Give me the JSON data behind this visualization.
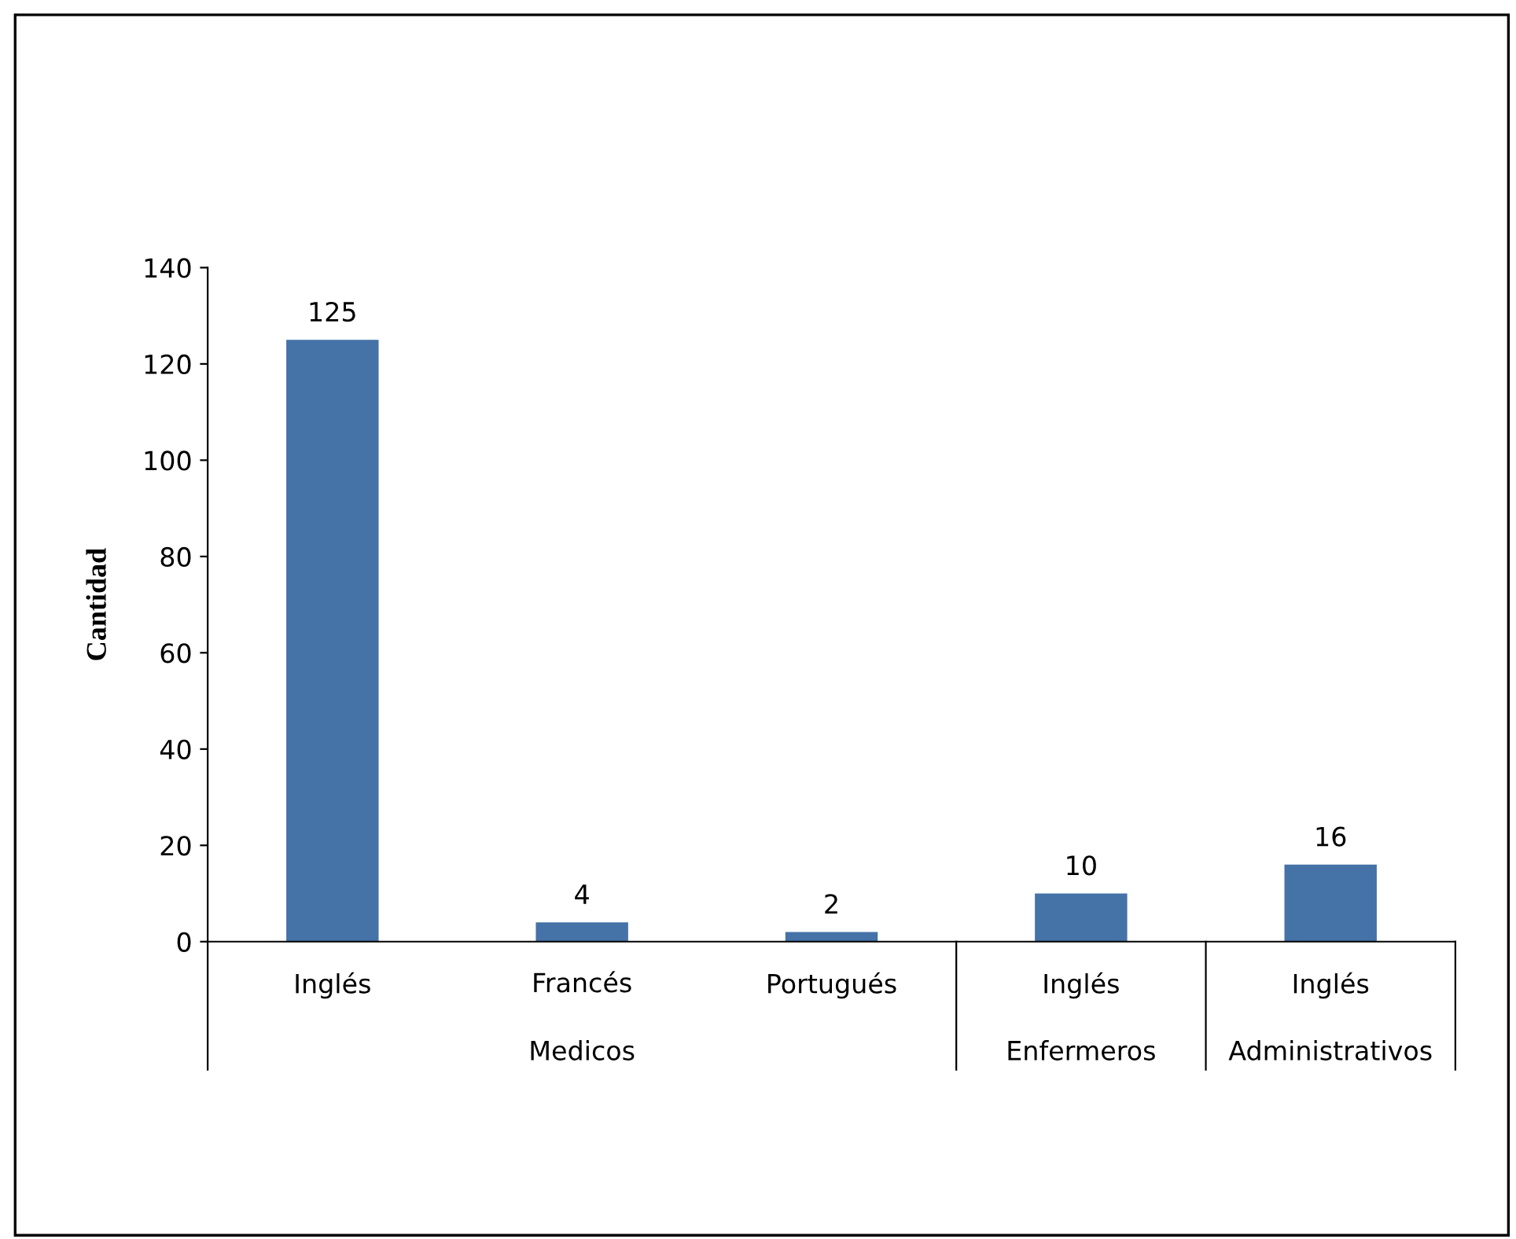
{
  "chart_data": {
    "type": "bar",
    "ylabel": "Cantidad",
    "categories": [
      "Inglés",
      "Francés",
      "Portugués",
      "Inglés",
      "Inglés"
    ],
    "values": [
      125,
      4,
      2,
      10,
      16
    ],
    "color": "#4572a7",
    "ylim": [
      0,
      140
    ],
    "yticks": [
      0,
      20,
      40,
      60,
      80,
      100,
      120,
      140
    ],
    "data_labels": true,
    "grid": false,
    "annotations": [
      "Medicos",
      "Enfermeros",
      "Administrativos"
    ]
  }
}
